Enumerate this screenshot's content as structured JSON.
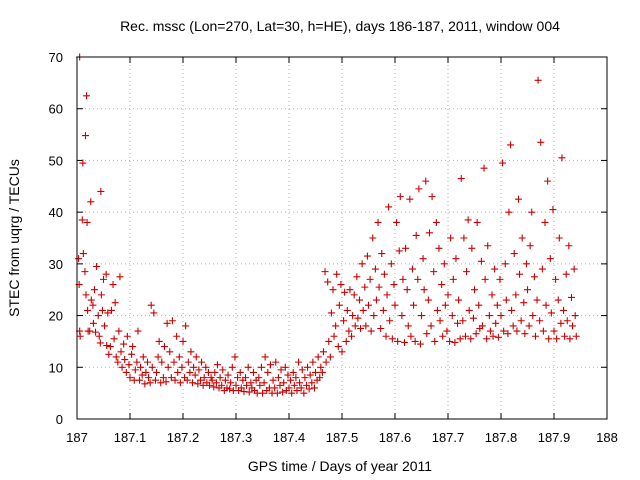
{
  "chart_data": {
    "type": "scatter",
    "title": "Rec. mssc (Lon=270, Lat=30, h=HE), days 186-187, 2011, window 004",
    "xlabel": "GPS time / Days of year 2011",
    "ylabel": "STEC from uqrg / TECUs",
    "xlim": [
      187,
      188
    ],
    "ylim": [
      0,
      70
    ],
    "xticks": [
      "187",
      "187.1",
      "187.2",
      "187.3",
      "187.4",
      "187.5",
      "187.6",
      "187.7",
      "187.8",
      "187.9",
      "188"
    ],
    "yticks": [
      "0",
      "10",
      "20",
      "30",
      "40",
      "50",
      "60",
      "70"
    ],
    "grid": true,
    "marker": "plus",
    "colors": {
      "points": "#cc0000"
    },
    "points": [
      [
        187.005,
        70
      ],
      [
        187.011,
        49.5
      ],
      [
        187.018,
        62.5
      ],
      [
        187.016,
        54.8
      ],
      [
        187.026,
        42
      ],
      [
        187.045,
        44
      ],
      [
        187.003,
        31
      ],
      [
        187.004,
        26
      ],
      [
        187.005,
        17
      ],
      [
        187.006,
        16
      ],
      [
        187.01,
        38.5
      ],
      [
        187.012,
        32
      ],
      [
        187.015,
        28.5
      ],
      [
        187.017,
        24
      ],
      [
        187.019,
        38
      ],
      [
        187.02,
        21
      ],
      [
        187.021,
        17
      ],
      [
        187.024,
        17
      ],
      [
        187.027,
        23
      ],
      [
        187.03,
        22
      ],
      [
        187.031,
        18.5
      ],
      [
        187.033,
        25
      ],
      [
        187.035,
        16.8
      ],
      [
        187.037,
        29.5
      ],
      [
        187.04,
        20
      ],
      [
        187.042,
        16
      ],
      [
        187.044,
        14.7
      ],
      [
        187.046,
        24
      ],
      [
        187.048,
        21
      ],
      [
        187.05,
        27
      ],
      [
        187.052,
        18
      ],
      [
        187.055,
        28
      ],
      [
        187.056,
        14.2
      ],
      [
        187.058,
        20.5
      ],
      [
        187.06,
        12.5
      ],
      [
        187.063,
        14
      ],
      [
        187.065,
        21
      ],
      [
        187.068,
        26
      ],
      [
        187.07,
        15.5
      ],
      [
        187.072,
        22.5
      ],
      [
        187.074,
        12
      ],
      [
        187.077,
        11
      ],
      [
        187.079,
        17
      ],
      [
        187.081,
        27.5
      ],
      [
        187.083,
        13
      ],
      [
        187.085,
        10
      ],
      [
        187.088,
        14.5
      ],
      [
        187.09,
        11.5
      ],
      [
        187.093,
        9
      ],
      [
        187.095,
        16
      ],
      [
        187.098,
        10.5
      ],
      [
        187.1,
        8
      ],
      [
        187.103,
        12.5
      ],
      [
        187.105,
        14
      ],
      [
        187.108,
        7.5
      ],
      [
        187.11,
        9.5
      ],
      [
        187.113,
        11
      ],
      [
        187.115,
        17
      ],
      [
        187.118,
        7.5
      ],
      [
        187.12,
        10
      ],
      [
        187.123,
        8.5
      ],
      [
        187.125,
        12
      ],
      [
        187.128,
        6.8
      ],
      [
        187.13,
        9
      ],
      [
        187.133,
        11
      ],
      [
        187.135,
        8
      ],
      [
        187.138,
        7
      ],
      [
        187.14,
        22
      ],
      [
        187.142,
        10
      ],
      [
        187.145,
        20.5
      ],
      [
        187.148,
        7.5
      ],
      [
        187.15,
        9
      ],
      [
        187.153,
        12
      ],
      [
        187.155,
        15
      ],
      [
        187.158,
        7
      ],
      [
        187.16,
        11
      ],
      [
        187.163,
        8
      ],
      [
        187.165,
        14
      ],
      [
        187.168,
        7.2
      ],
      [
        187.17,
        18.5
      ],
      [
        187.172,
        10
      ],
      [
        187.175,
        13
      ],
      [
        187.178,
        8
      ],
      [
        187.18,
        19
      ],
      [
        187.183,
        11
      ],
      [
        187.185,
        7.5
      ],
      [
        187.188,
        16
      ],
      [
        187.19,
        9
      ],
      [
        187.193,
        12
      ],
      [
        187.195,
        7
      ],
      [
        187.198,
        10
      ],
      [
        187.2,
        15
      ],
      [
        187.203,
        8
      ],
      [
        187.205,
        18
      ],
      [
        187.208,
        7.5
      ],
      [
        187.21,
        11
      ],
      [
        187.213,
        9
      ],
      [
        187.215,
        13
      ],
      [
        187.218,
        7
      ],
      [
        187.22,
        10
      ],
      [
        187.223,
        8.5
      ],
      [
        187.225,
        12
      ],
      [
        187.228,
        6.8
      ],
      [
        187.23,
        9.5
      ],
      [
        187.233,
        7.5
      ],
      [
        187.235,
        11
      ],
      [
        187.238,
        6.5
      ],
      [
        187.24,
        8
      ],
      [
        187.243,
        10
      ],
      [
        187.245,
        7
      ],
      [
        187.248,
        9
      ],
      [
        187.25,
        6.5
      ],
      [
        187.253,
        8
      ],
      [
        187.255,
        7.5
      ],
      [
        187.258,
        6.2
      ],
      [
        187.26,
        9
      ],
      [
        187.263,
        7
      ],
      [
        187.265,
        10.5
      ],
      [
        187.268,
        6
      ],
      [
        187.27,
        8
      ],
      [
        187.273,
        6.5
      ],
      [
        187.275,
        9.5
      ],
      [
        187.278,
        5.5
      ],
      [
        187.28,
        7.5
      ],
      [
        187.283,
        6
      ],
      [
        187.285,
        8.5
      ],
      [
        187.288,
        5.8
      ],
      [
        187.29,
        7
      ],
      [
        187.293,
        10
      ],
      [
        187.295,
        5.5
      ],
      [
        187.298,
        12
      ],
      [
        187.3,
        6.5
      ],
      [
        187.303,
        8
      ],
      [
        187.305,
        5.5
      ],
      [
        187.308,
        9
      ],
      [
        187.31,
        6
      ],
      [
        187.313,
        7.5
      ],
      [
        187.315,
        5.3
      ],
      [
        187.318,
        8
      ],
      [
        187.32,
        6.5
      ],
      [
        187.323,
        10
      ],
      [
        187.325,
        5.2
      ],
      [
        187.328,
        7
      ],
      [
        187.33,
        6
      ],
      [
        187.333,
        9
      ],
      [
        187.335,
        5.5
      ],
      [
        187.338,
        7.5
      ],
      [
        187.34,
        5
      ],
      [
        187.343,
        8
      ],
      [
        187.345,
        6.5
      ],
      [
        187.348,
        10
      ],
      [
        187.35,
        5
      ],
      [
        187.353,
        7
      ],
      [
        187.355,
        12
      ],
      [
        187.358,
        5.5
      ],
      [
        187.36,
        9
      ],
      [
        187.363,
        6
      ],
      [
        187.365,
        10.5
      ],
      [
        187.368,
        5
      ],
      [
        187.37,
        7.5
      ],
      [
        187.373,
        6
      ],
      [
        187.375,
        11
      ],
      [
        187.378,
        5
      ],
      [
        187.38,
        8
      ],
      [
        187.383,
        6.5
      ],
      [
        187.385,
        9.5
      ],
      [
        187.388,
        5.2
      ],
      [
        187.39,
        7
      ],
      [
        187.393,
        10
      ],
      [
        187.395,
        5.5
      ],
      [
        187.398,
        8.5
      ],
      [
        187.4,
        6
      ],
      [
        187.403,
        7.5
      ],
      [
        187.405,
        5
      ],
      [
        187.408,
        9
      ],
      [
        187.41,
        6.5
      ],
      [
        187.413,
        8
      ],
      [
        187.415,
        5.5
      ],
      [
        187.418,
        11
      ],
      [
        187.42,
        7
      ],
      [
        187.423,
        6
      ],
      [
        187.425,
        9.5
      ],
      [
        187.428,
        5
      ],
      [
        187.43,
        8
      ],
      [
        187.433,
        6.5
      ],
      [
        187.435,
        10
      ],
      [
        187.438,
        5.8
      ],
      [
        187.44,
        8.5
      ],
      [
        187.443,
        7
      ],
      [
        187.445,
        11
      ],
      [
        187.448,
        6
      ],
      [
        187.45,
        9
      ],
      [
        187.453,
        7.5
      ],
      [
        187.455,
        12
      ],
      [
        187.458,
        8
      ],
      [
        187.46,
        10
      ],
      [
        187.463,
        9
      ],
      [
        187.465,
        13
      ],
      [
        187.468,
        28.5
      ],
      [
        187.47,
        11
      ],
      [
        187.473,
        26.5
      ],
      [
        187.475,
        15
      ],
      [
        187.478,
        12
      ],
      [
        187.48,
        20.5
      ],
      [
        187.483,
        25
      ],
      [
        187.485,
        16
      ],
      [
        187.488,
        18
      ],
      [
        187.49,
        28
      ],
      [
        187.493,
        14
      ],
      [
        187.495,
        22
      ],
      [
        187.498,
        26
      ],
      [
        187.5,
        13
      ],
      [
        187.503,
        19
      ],
      [
        187.505,
        24.5
      ],
      [
        187.508,
        15
      ],
      [
        187.51,
        21
      ],
      [
        187.513,
        17
      ],
      [
        187.515,
        25
      ],
      [
        187.518,
        16
      ],
      [
        187.52,
        20
      ],
      [
        187.523,
        24
      ],
      [
        187.525,
        18
      ],
      [
        187.528,
        27.5
      ],
      [
        187.53,
        19.5
      ],
      [
        187.533,
        23
      ],
      [
        187.535,
        17.5
      ],
      [
        187.538,
        30
      ],
      [
        187.54,
        21
      ],
      [
        187.543,
        25.5
      ],
      [
        187.545,
        18
      ],
      [
        187.548,
        31.5
      ],
      [
        187.55,
        22
      ],
      [
        187.553,
        27
      ],
      [
        187.555,
        17
      ],
      [
        187.558,
        35
      ],
      [
        187.56,
        20
      ],
      [
        187.563,
        29
      ],
      [
        187.565,
        23
      ],
      [
        187.568,
        38
      ],
      [
        187.57,
        25.5
      ],
      [
        187.573,
        17.5
      ],
      [
        187.575,
        32
      ],
      [
        187.578,
        21
      ],
      [
        187.58,
        28
      ],
      [
        187.583,
        16
      ],
      [
        187.585,
        24
      ],
      [
        187.588,
        41
      ],
      [
        187.59,
        19
      ],
      [
        187.593,
        30
      ],
      [
        187.595,
        15.5
      ],
      [
        187.598,
        26
      ],
      [
        187.6,
        22
      ],
      [
        187.603,
        38
      ],
      [
        187.605,
        15
      ],
      [
        187.608,
        32.5
      ],
      [
        187.61,
        43
      ],
      [
        187.613,
        20
      ],
      [
        187.615,
        27
      ],
      [
        187.618,
        14.8
      ],
      [
        187.62,
        33
      ],
      [
        187.623,
        25
      ],
      [
        187.625,
        18
      ],
      [
        187.628,
        42.5
      ],
      [
        187.63,
        16
      ],
      [
        187.633,
        29
      ],
      [
        187.635,
        22
      ],
      [
        187.638,
        15
      ],
      [
        187.64,
        35.5
      ],
      [
        187.643,
        27
      ],
      [
        187.645,
        44.5
      ],
      [
        187.648,
        14.5
      ],
      [
        187.65,
        20
      ],
      [
        187.653,
        31
      ],
      [
        187.655,
        25
      ],
      [
        187.658,
        46
      ],
      [
        187.66,
        16.5
      ],
      [
        187.663,
        23
      ],
      [
        187.665,
        36
      ],
      [
        187.668,
        18
      ],
      [
        187.67,
        43
      ],
      [
        187.673,
        28.5
      ],
      [
        187.675,
        15
      ],
      [
        187.678,
        38
      ],
      [
        187.68,
        21
      ],
      [
        187.683,
        33
      ],
      [
        187.685,
        19
      ],
      [
        187.688,
        26
      ],
      [
        187.69,
        16
      ],
      [
        187.693,
        30
      ],
      [
        187.695,
        22
      ],
      [
        187.698,
        17
      ],
      [
        187.7,
        24
      ],
      [
        187.703,
        15
      ],
      [
        187.705,
        35
      ],
      [
        187.708,
        20
      ],
      [
        187.71,
        27
      ],
      [
        187.713,
        14.8
      ],
      [
        187.715,
        31
      ],
      [
        187.718,
        18.5
      ],
      [
        187.72,
        23
      ],
      [
        187.723,
        15.5
      ],
      [
        187.725,
        46.5
      ],
      [
        187.728,
        19
      ],
      [
        187.73,
        35
      ],
      [
        187.733,
        16
      ],
      [
        187.735,
        28.5
      ],
      [
        187.738,
        38.5
      ],
      [
        187.74,
        21
      ],
      [
        187.743,
        15.5
      ],
      [
        187.745,
        33
      ],
      [
        187.748,
        19.5
      ],
      [
        187.75,
        25
      ],
      [
        187.753,
        16.5
      ],
      [
        187.755,
        38
      ],
      [
        187.758,
        22
      ],
      [
        187.76,
        17.5
      ],
      [
        187.763,
        30.5
      ],
      [
        187.765,
        18
      ],
      [
        187.768,
        48.5
      ],
      [
        187.77,
        27
      ],
      [
        187.773,
        15.5
      ],
      [
        187.775,
        33.5
      ],
      [
        187.778,
        20
      ],
      [
        187.78,
        17
      ],
      [
        187.783,
        24
      ],
      [
        187.785,
        16
      ],
      [
        187.788,
        29
      ],
      [
        187.79,
        18.5
      ],
      [
        187.793,
        22
      ],
      [
        187.795,
        15.8
      ],
      [
        187.798,
        27
      ],
      [
        187.8,
        20
      ],
      [
        187.803,
        49.5
      ],
      [
        187.805,
        17
      ],
      [
        187.808,
        30
      ],
      [
        187.81,
        23
      ],
      [
        187.813,
        16.5
      ],
      [
        187.815,
        40
      ],
      [
        187.818,
        53
      ],
      [
        187.82,
        21
      ],
      [
        187.823,
        18
      ],
      [
        187.825,
        32
      ],
      [
        187.828,
        24
      ],
      [
        187.83,
        17
      ],
      [
        187.833,
        42.5
      ],
      [
        187.835,
        28
      ],
      [
        187.838,
        19
      ],
      [
        187.84,
        35
      ],
      [
        187.843,
        22.5
      ],
      [
        187.845,
        16.5
      ],
      [
        187.848,
        30
      ],
      [
        187.85,
        25
      ],
      [
        187.853,
        18
      ],
      [
        187.855,
        33.5
      ],
      [
        187.858,
        40
      ],
      [
        187.86,
        20
      ],
      [
        187.863,
        27.5
      ],
      [
        187.865,
        16
      ],
      [
        187.868,
        23
      ],
      [
        187.87,
        65.5
      ],
      [
        187.873,
        19
      ],
      [
        187.875,
        53.5
      ],
      [
        187.878,
        29
      ],
      [
        187.88,
        17
      ],
      [
        187.883,
        38
      ],
      [
        187.885,
        22
      ],
      [
        187.888,
        46
      ],
      [
        187.89,
        15.5
      ],
      [
        187.893,
        31
      ],
      [
        187.895,
        20.5
      ],
      [
        187.898,
        40.5
      ],
      [
        187.9,
        17
      ],
      [
        187.903,
        27
      ],
      [
        187.905,
        15.5
      ],
      [
        187.908,
        23
      ],
      [
        187.91,
        35
      ],
      [
        187.913,
        18.5
      ],
      [
        187.915,
        50.5
      ],
      [
        187.918,
        21
      ],
      [
        187.92,
        16
      ],
      [
        187.923,
        28
      ],
      [
        187.925,
        19
      ],
      [
        187.928,
        33.5
      ],
      [
        187.93,
        15.5
      ],
      [
        187.933,
        23.5
      ],
      [
        187.935,
        18
      ],
      [
        187.938,
        29
      ],
      [
        187.94,
        20
      ],
      [
        187.942,
        16
      ]
    ]
  }
}
